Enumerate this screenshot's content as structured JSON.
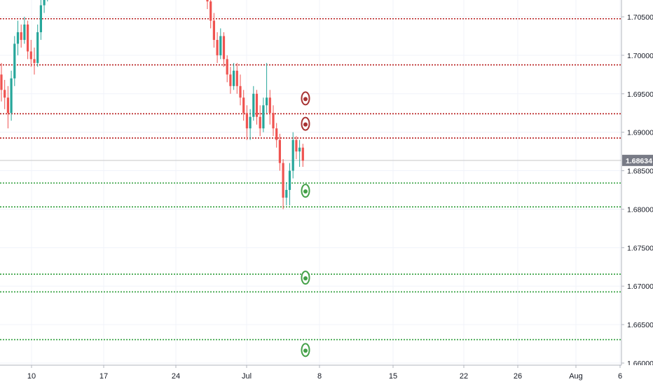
{
  "chart_data": {
    "type": "candlestick",
    "title": "",
    "xlabel": "",
    "ylabel": "",
    "y_axis_ticks": [
      "1.70500",
      "1.70000",
      "1.69500",
      "1.69000",
      "1.68500",
      "1.68000",
      "1.67500",
      "1.67000",
      "1.66500",
      "1.66000"
    ],
    "ylim": [
      1.66,
      1.7085
    ],
    "x_axis_ticks": [
      "10",
      "17",
      "24",
      "Jul",
      "8",
      "15",
      "22",
      "26",
      "Aug",
      "6"
    ],
    "last_price": 1.68634,
    "last_price_label": "1.68634",
    "resistance_levels": [
      1.70475,
      1.69875,
      1.6924,
      1.68925
    ],
    "support_levels": [
      1.6834,
      1.6803,
      1.67155,
      1.66925,
      1.66305
    ],
    "target_markers": [
      {
        "kind": "resistance",
        "price": 1.6944
      },
      {
        "kind": "resistance",
        "price": 1.6911
      },
      {
        "kind": "support",
        "price": 1.6824
      },
      {
        "kind": "support",
        "price": 1.6711
      },
      {
        "kind": "support",
        "price": 1.6617
      }
    ],
    "candle_segments": [
      {
        "start": "Jun 05",
        "ohlc": [
          [
            1.6975,
            1.699,
            1.694,
            1.6955
          ],
          [
            1.6955,
            1.6968,
            1.693,
            1.6945
          ],
          [
            1.6945,
            1.696,
            1.6905,
            1.6925
          ],
          [
            1.6925,
            1.698,
            1.6915,
            1.697
          ],
          [
            1.697,
            1.7025,
            1.696,
            1.7015
          ],
          [
            1.7015,
            1.7045,
            1.7,
            1.703
          ],
          [
            1.703,
            1.704,
            1.701,
            1.702
          ],
          [
            1.702,
            1.705,
            1.7015,
            1.704
          ],
          [
            1.704,
            1.7045,
            1.6995,
            1.7005
          ],
          [
            1.7005,
            1.702,
            1.6985,
            1.6995
          ],
          [
            1.6995,
            1.701,
            1.6975,
            1.699
          ],
          [
            1.699,
            1.704,
            1.6985,
            1.703
          ],
          [
            1.703,
            1.7075,
            1.702,
            1.7065
          ],
          [
            1.7065,
            1.709,
            1.7055,
            1.708
          ],
          [
            1.708,
            1.7092,
            1.707,
            1.7085
          ],
          [
            1.7085,
            1.7095,
            1.7075,
            1.709
          ]
        ]
      },
      {
        "start": "Jun 26",
        "ohlc": [
          [
            1.709,
            1.7095,
            1.706,
            1.707
          ],
          [
            1.707,
            1.7075,
            1.7035,
            1.7045
          ],
          [
            1.7045,
            1.7055,
            1.701,
            1.702
          ],
          [
            1.702,
            1.703,
            1.699,
            1.7
          ],
          [
            1.7,
            1.7035,
            1.6995,
            1.7025
          ],
          [
            1.7025,
            1.703,
            1.6985,
            1.6995
          ],
          [
            1.6995,
            1.7,
            1.6965,
            1.6975
          ],
          [
            1.6975,
            1.6985,
            1.695,
            1.696
          ],
          [
            1.696,
            1.699,
            1.6955,
            1.698
          ],
          [
            1.698,
            1.699,
            1.695,
            1.696
          ],
          [
            1.696,
            1.6975,
            1.6935,
            1.6945
          ],
          [
            1.6945,
            1.6955,
            1.6915,
            1.6925
          ],
          [
            1.6925,
            1.6935,
            1.689,
            1.6905
          ],
          [
            1.6905,
            1.693,
            1.689,
            1.692
          ],
          [
            1.692,
            1.696,
            1.6915,
            1.695
          ],
          [
            1.695,
            1.6955,
            1.691,
            1.692
          ],
          [
            1.692,
            1.6935,
            1.6895,
            1.6905
          ],
          [
            1.6905,
            1.6945,
            1.69,
            1.6935
          ],
          [
            1.6935,
            1.699,
            1.6925,
            1.6945
          ],
          [
            1.6945,
            1.6955,
            1.691,
            1.6925
          ],
          [
            1.6925,
            1.6935,
            1.6895,
            1.6905
          ],
          [
            1.6905,
            1.6912,
            1.688,
            1.689
          ],
          [
            1.689,
            1.6898,
            1.685,
            1.686
          ],
          [
            1.686,
            1.6865,
            1.68,
            1.6815
          ],
          [
            1.6815,
            1.6835,
            1.6805,
            1.6825
          ],
          [
            1.6825,
            1.686,
            1.6805,
            1.685
          ],
          [
            1.685,
            1.69,
            1.684,
            1.689
          ],
          [
            1.689,
            1.6895,
            1.6865,
            1.6875
          ],
          [
            1.6875,
            1.689,
            1.6855,
            1.688
          ],
          [
            1.688,
            1.6885,
            1.6855,
            1.6863
          ]
        ]
      }
    ],
    "colors": {
      "up": "#26a69a",
      "down": "#ef5350",
      "resistance_line": "#b71c1c",
      "support_line": "#2e9e3a",
      "resistance_marker": "#a83232",
      "support_marker": "#43a047",
      "price_label_bg": "#787b86",
      "grid": "#f0f3fa",
      "axis_text": "#131722",
      "last_price_line": "#c8c8c8"
    }
  }
}
